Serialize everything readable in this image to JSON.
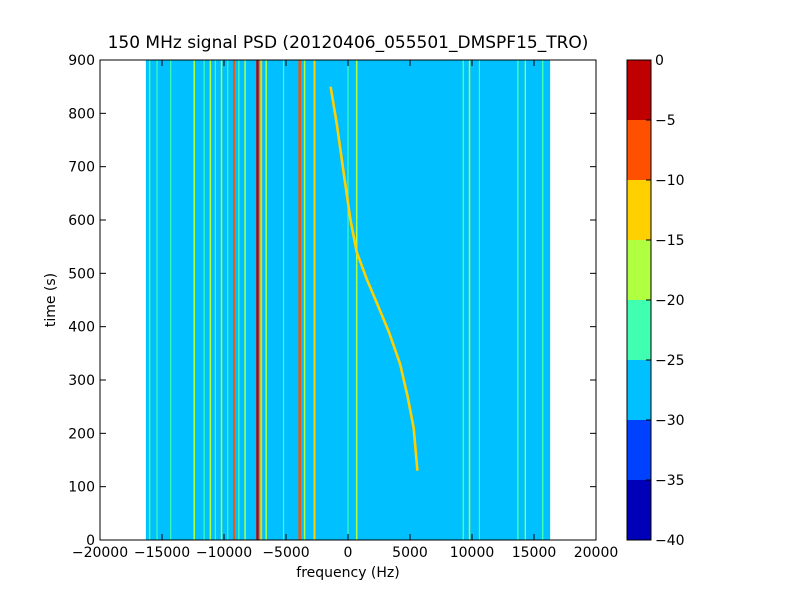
{
  "chart_data": {
    "type": "heatmap",
    "title": "150 MHz signal PSD (20120406_055501_DMSPF15_TRO)",
    "xlabel": "frequency (Hz)",
    "ylabel": "time (s)",
    "xlim": [
      -20000,
      20000
    ],
    "ylim": [
      0,
      900
    ],
    "xticks": [
      {
        "value": -20000,
        "label": "−20000"
      },
      {
        "value": -15000,
        "label": "−15000"
      },
      {
        "value": -10000,
        "label": "−10000"
      },
      {
        "value": -5000,
        "label": "−5000"
      },
      {
        "value": 0,
        "label": "0"
      },
      {
        "value": 5000,
        "label": "5000"
      },
      {
        "value": 10000,
        "label": "10000"
      },
      {
        "value": 15000,
        "label": "15000"
      },
      {
        "value": 20000,
        "label": "20000"
      }
    ],
    "yticks": [
      {
        "value": 0,
        "label": "0"
      },
      {
        "value": 100,
        "label": "100"
      },
      {
        "value": 200,
        "label": "200"
      },
      {
        "value": 300,
        "label": "300"
      },
      {
        "value": 400,
        "label": "400"
      },
      {
        "value": 500,
        "label": "500"
      },
      {
        "value": 600,
        "label": "600"
      },
      {
        "value": 700,
        "label": "700"
      },
      {
        "value": 800,
        "label": "800"
      },
      {
        "value": 900,
        "label": "900"
      }
    ],
    "data_extent_x": [
      -16300,
      16300
    ],
    "background_level_range": [
      -30,
      -25
    ],
    "colorbar": {
      "levels": [
        -40,
        -35,
        -30,
        -25,
        -20,
        -15,
        -10,
        -5,
        0
      ],
      "tick_labels": [
        "−40",
        "−35",
        "−30",
        "−25",
        "−20",
        "−15",
        "−10",
        "−5",
        "0"
      ],
      "colors": [
        "#0000b8",
        "#0040ff",
        "#00c0ff",
        "#40ffb0",
        "#b0ff40",
        "#ffd000",
        "#ff5000",
        "#c00000"
      ]
    },
    "vertical_lines": [
      {
        "x": -16000,
        "color": "#40ffb0",
        "width": 120
      },
      {
        "x": -15400,
        "color": "#40ffb0",
        "width": 80
      },
      {
        "x": -14300,
        "color": "#40ffb0",
        "width": 80
      },
      {
        "x": -12400,
        "color": "#b0ff40",
        "width": 120
      },
      {
        "x": -11600,
        "color": "#40ffb0",
        "width": 80
      },
      {
        "x": -11100,
        "color": "#b0ff40",
        "width": 120
      },
      {
        "x": -10700,
        "color": "#40ffb0",
        "width": 80
      },
      {
        "x": -10200,
        "color": "#b0ff40",
        "width": 120
      },
      {
        "x": -9700,
        "color": "#40ffb0",
        "width": 80
      },
      {
        "x": -9200,
        "color": "#ff5000",
        "width": 160
      },
      {
        "x": -8800,
        "color": "#40ffb0",
        "width": 80
      },
      {
        "x": -8300,
        "color": "#b0ff40",
        "width": 120
      },
      {
        "x": -7300,
        "color": "#c00000",
        "width": 200
      },
      {
        "x": -7000,
        "color": "#ffd000",
        "width": 160
      },
      {
        "x": -6600,
        "color": "#b0ff40",
        "width": 120
      },
      {
        "x": -5200,
        "color": "#40ffb0",
        "width": 80
      },
      {
        "x": -3900,
        "color": "#ff5000",
        "width": 200
      },
      {
        "x": -3500,
        "color": "#b0ff40",
        "width": 120
      },
      {
        "x": -2700,
        "color": "#ffd000",
        "width": 160
      },
      {
        "x": 0,
        "color": "#40ffb0",
        "width": 80
      },
      {
        "x": 700,
        "color": "#b0ff40",
        "width": 120
      },
      {
        "x": 9300,
        "color": "#40ffb0",
        "width": 120
      },
      {
        "x": 9800,
        "color": "#b0ff40",
        "width": 120
      },
      {
        "x": 10600,
        "color": "#40ffb0",
        "width": 80
      },
      {
        "x": 13700,
        "color": "#40ffb0",
        "width": 120
      },
      {
        "x": 14300,
        "color": "#b0ff40",
        "width": 80
      },
      {
        "x": 15700,
        "color": "#40ffb0",
        "width": 120
      }
    ],
    "doppler_curve": {
      "color": "#ffd000",
      "points": [
        {
          "x": -1400,
          "y": 850
        },
        {
          "x": -900,
          "y": 780
        },
        {
          "x": -300,
          "y": 680
        },
        {
          "x": 200,
          "y": 600
        },
        {
          "x": 700,
          "y": 540
        },
        {
          "x": 1500,
          "y": 490
        },
        {
          "x": 2400,
          "y": 440
        },
        {
          "x": 3300,
          "y": 390
        },
        {
          "x": 4200,
          "y": 330
        },
        {
          "x": 4800,
          "y": 270
        },
        {
          "x": 5300,
          "y": 210
        },
        {
          "x": 5600,
          "y": 130
        }
      ]
    }
  }
}
